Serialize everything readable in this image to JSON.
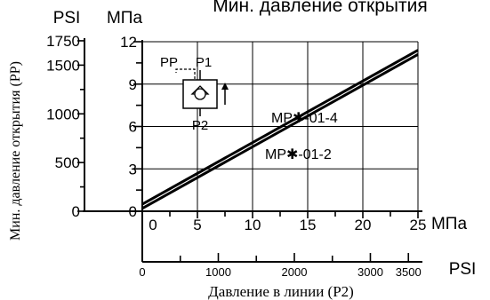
{
  "chart_data": {
    "type": "line",
    "title": "Мин. давление открытия",
    "xlabel": "Давление в линии (P2)",
    "ylabel": "Мин. давление открытия (PP)",
    "x_unit": "МПа",
    "x_unit_secondary": "PSI",
    "y_unit": "МПа",
    "y_unit_secondary": "PSI",
    "xlim": [
      0,
      25
    ],
    "ylim": [
      0,
      12
    ],
    "x_ticks": [
      0,
      5,
      10,
      15,
      20,
      25
    ],
    "y_ticks": [
      0,
      3,
      6,
      9,
      12
    ],
    "x_ticks_secondary": [
      {
        "label": "0",
        "mpa": 0
      },
      {
        "label": "1000",
        "mpa": 6.895
      },
      {
        "label": "2000",
        "mpa": 13.79
      },
      {
        "label": "3000",
        "mpa": 20.684
      },
      {
        "label": "3500",
        "mpa": 24.132
      }
    ],
    "y_ticks_secondary": [
      {
        "label": "0",
        "mpa": 0
      },
      {
        "label": "500",
        "mpa": 3.447
      },
      {
        "label": "1000",
        "mpa": 6.895
      },
      {
        "label": "1500",
        "mpa": 10.342
      },
      {
        "label": "1750",
        "mpa": 12.066
      }
    ],
    "grid": true,
    "series": [
      {
        "name": "MP✱-01-4",
        "x": [
          0,
          25
        ],
        "y": [
          0.5,
          11.4
        ]
      },
      {
        "name": "MP✱-01-2",
        "x": [
          0,
          25
        ],
        "y": [
          0.2,
          11.1
        ]
      }
    ],
    "symbol_labels": {
      "pp": "PP",
      "p1": "P1",
      "p2": "P2"
    }
  }
}
